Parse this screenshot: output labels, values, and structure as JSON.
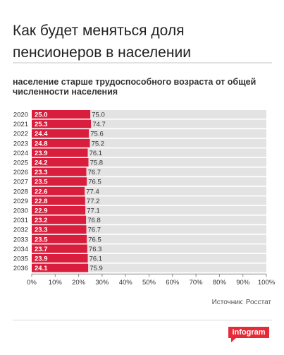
{
  "title": "Как будет меняться доля пенсионеров в населении",
  "subtitle": "население старше трудоспособного возраста от общей численности населения",
  "source": "Источник: Росстат",
  "brand": "infogram",
  "colors": {
    "accent": "#d81e3c",
    "rest": "#e3e3e3",
    "brand": "#e52b38"
  },
  "chart_data": {
    "type": "bar",
    "orientation": "horizontal",
    "stacked": true,
    "percent_axis": true,
    "categories": [
      "2020",
      "2021",
      "2022",
      "2023",
      "2024",
      "2025",
      "2026",
      "2027",
      "2028",
      "2029",
      "2030",
      "2031",
      "2032",
      "2033",
      "2034",
      "2035",
      "2036"
    ],
    "series": [
      {
        "values": [
          25.0,
          25.3,
          24.4,
          24.8,
          23.9,
          24.2,
          23.3,
          23.5,
          22.6,
          22.8,
          22.9,
          23.2,
          23.3,
          23.5,
          23.7,
          23.9,
          24.1
        ]
      },
      {
        "values": [
          75.0,
          74.7,
          75.6,
          75.2,
          76.1,
          75.8,
          76.7,
          76.5,
          77.4,
          77.2,
          77.1,
          76.8,
          76.7,
          76.5,
          76.3,
          76.1,
          75.9
        ]
      }
    ],
    "xticks": [
      "0%",
      "10%",
      "20%",
      "30%",
      "40%",
      "50%",
      "60%",
      "70%",
      "80%",
      "90%",
      "100%"
    ],
    "xlim": [
      0,
      100
    ],
    "legend": "none",
    "grid": false
  }
}
